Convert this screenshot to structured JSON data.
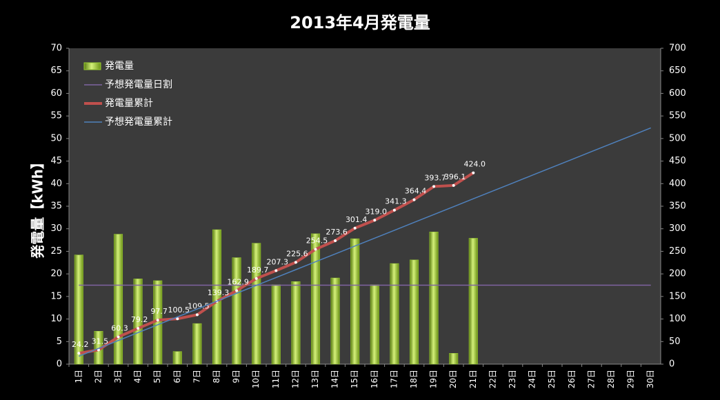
{
  "chart_data": {
    "type": "bar-line",
    "title": "2013年4月発電量",
    "y_label": "発電量【kWh】",
    "categories": [
      "1日",
      "2日",
      "3日",
      "4日",
      "5日",
      "6日",
      "7日",
      "8日",
      "9日",
      "10日",
      "11日",
      "12日",
      "13日",
      "14日",
      "15日",
      "16日",
      "17日",
      "18日",
      "19日",
      "20日",
      "21日",
      "22日",
      "23日",
      "24日",
      "25日",
      "26日",
      "27日",
      "28日",
      "29日",
      "30日"
    ],
    "ylim": [
      0,
      70
    ],
    "yticks": [
      0,
      5,
      10,
      15,
      20,
      25,
      30,
      35,
      40,
      45,
      50,
      55,
      60,
      65,
      70
    ],
    "y2lim": [
      0,
      700
    ],
    "y2ticks": [
      0,
      50,
      100,
      150,
      200,
      250,
      300,
      350,
      400,
      450,
      500,
      550,
      600,
      650,
      700
    ],
    "legend": "upper-left",
    "series": [
      {
        "name": "発電量",
        "type": "bar",
        "color": "#9acd32",
        "values": [
          24.2,
          7.3,
          28.8,
          18.9,
          18.5,
          2.8,
          9.0,
          29.8,
          23.6,
          26.8,
          17.6,
          18.3,
          28.9,
          19.1,
          27.8,
          17.6,
          22.3,
          23.1,
          29.3,
          2.4,
          27.9,
          null,
          null,
          null,
          null,
          null,
          null,
          null,
          null,
          null
        ]
      },
      {
        "name": "予想発電量日割",
        "type": "line",
        "color": "#8064a2",
        "values": [
          17.5,
          17.5,
          17.5,
          17.5,
          17.5,
          17.5,
          17.5,
          17.5,
          17.5,
          17.5,
          17.5,
          17.5,
          17.5,
          17.5,
          17.5,
          17.5,
          17.5,
          17.5,
          17.5,
          17.5,
          17.5,
          17.5,
          17.5,
          17.5,
          17.5,
          17.5,
          17.5,
          17.5,
          17.5,
          17.5
        ]
      },
      {
        "name": "発電量累計",
        "type": "line",
        "axis": "y2",
        "color": "#c0504d",
        "markers": true,
        "values": [
          24.2,
          31.5,
          60.3,
          79.2,
          97.7,
          100.5,
          109.5,
          139.3,
          162.9,
          189.7,
          207.3,
          225.6,
          254.5,
          273.6,
          301.4,
          319.0,
          341.3,
          364.4,
          393.7,
          396.1,
          424.0,
          null,
          null,
          null,
          null,
          null,
          null,
          null,
          null,
          null
        ],
        "value_labels": [
          "24.2",
          "31.5",
          "60.3",
          "79.2",
          "97.7",
          "100.5",
          "109.5",
          "139.3",
          "162.9",
          "189.7",
          "207.3",
          "225.6",
          "254.5",
          "273.6",
          "301.4",
          "319.0",
          "341.3",
          "364.4",
          "393.7",
          "396.1",
          "424.0",
          null,
          null,
          null,
          null,
          null,
          null,
          null,
          null,
          null
        ]
      },
      {
        "name": "予想発電量累計",
        "type": "line",
        "axis": "y2",
        "color": "#4f81bd",
        "values": [
          17.45,
          34.9,
          52.35,
          69.8,
          87.25,
          104.7,
          122.15,
          139.6,
          157.05,
          174.5,
          191.95,
          209.4,
          226.85,
          244.3,
          261.75,
          279.2,
          296.65,
          314.1,
          331.55,
          349,
          366.45,
          383.9,
          401.35,
          418.8,
          436.25,
          453.7,
          471.15,
          488.6,
          506.05,
          523.5
        ]
      }
    ]
  }
}
